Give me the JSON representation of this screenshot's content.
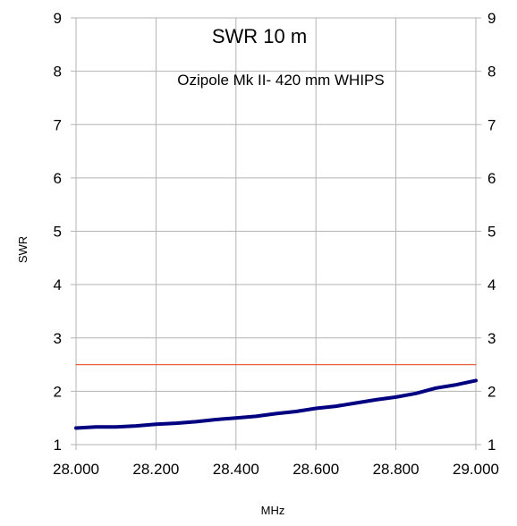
{
  "chart_data": {
    "type": "line",
    "title": "SWR 10 m",
    "subtitle": "Ozipole Mk II- 420 mm WHIPS",
    "xlabel": "MHz",
    "ylabel": "SWR",
    "xlim": [
      28.0,
      29.0
    ],
    "ylim": [
      1,
      9
    ],
    "x_ticks": [
      "28.000",
      "28.200",
      "28.400",
      "28.600",
      "28.800",
      "29.000"
    ],
    "x_tick_values": [
      28.0,
      28.2,
      28.4,
      28.6,
      28.8,
      29.0
    ],
    "y_ticks": [
      "1",
      "2",
      "3",
      "4",
      "5",
      "6",
      "7",
      "8",
      "9"
    ],
    "y_tick_values": [
      1,
      2,
      3,
      4,
      5,
      6,
      7,
      8,
      9
    ],
    "grid": true,
    "secondary_y_axis": true,
    "series": [
      {
        "color": "#000080",
        "x": [
          28.0,
          28.05,
          28.1,
          28.15,
          28.2,
          28.25,
          28.3,
          28.35,
          28.4,
          28.45,
          28.5,
          28.55,
          28.6,
          28.65,
          28.7,
          28.75,
          28.8,
          28.85,
          28.9,
          28.95,
          29.0
        ],
        "y": [
          1.31,
          1.33,
          1.33,
          1.35,
          1.38,
          1.4,
          1.43,
          1.47,
          1.5,
          1.53,
          1.58,
          1.62,
          1.68,
          1.72,
          1.78,
          1.84,
          1.89,
          1.96,
          2.06,
          2.12,
          2.2
        ]
      },
      {
        "color": "#e8603c",
        "x": [
          28.0,
          29.0
        ],
        "y": [
          2.5,
          2.5
        ]
      }
    ]
  }
}
